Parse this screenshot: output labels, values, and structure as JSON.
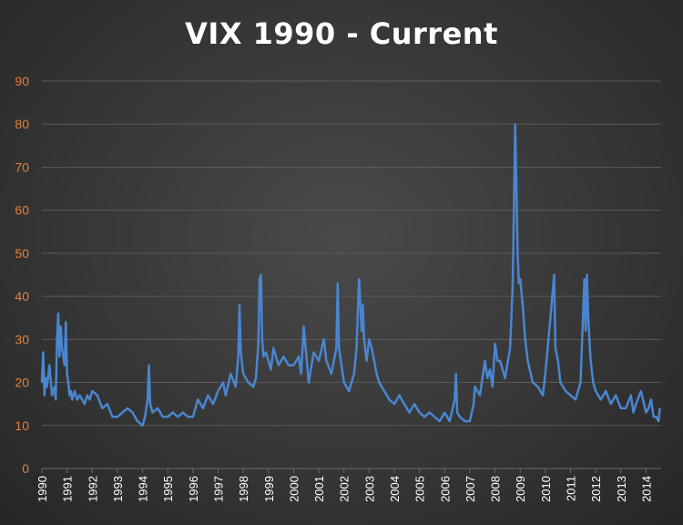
{
  "chart_data": {
    "type": "line",
    "title": "VIX 1990 - Current",
    "xlabel": "",
    "ylabel": "",
    "ylim": [
      0,
      90
    ],
    "yticks": [
      0,
      10,
      20,
      30,
      40,
      50,
      60,
      70,
      80,
      90
    ],
    "xlim": [
      1990.0,
      2014.6
    ],
    "xticks": [
      "1990",
      "1991",
      "1992",
      "1993",
      "1994",
      "1995",
      "1996",
      "1997",
      "1998",
      "1999",
      "2000",
      "2001",
      "2002",
      "2003",
      "2004",
      "2005",
      "2006",
      "2007",
      "2008",
      "2009",
      "2010",
      "2011",
      "2012",
      "2013",
      "2014"
    ],
    "grid": true,
    "legend": "none",
    "colors": {
      "line": "#4a86d0",
      "ytick": "#e2813a",
      "xtick": "#ffffff",
      "grid": "#5a5a5a"
    },
    "series": [
      {
        "x": [
          1990.0,
          1990.05,
          1990.1,
          1990.15,
          1990.2,
          1990.3,
          1990.4,
          1990.5,
          1990.55,
          1990.6,
          1990.65,
          1990.7,
          1990.75,
          1990.8,
          1990.85,
          1990.9,
          1990.95,
          1991.0,
          1991.05,
          1991.1,
          1991.15,
          1991.2,
          1991.3,
          1991.4,
          1991.5,
          1991.6,
          1991.7,
          1991.8,
          1991.9,
          1992.0,
          1992.2,
          1992.4,
          1992.6,
          1992.8,
          1993.0,
          1993.2,
          1993.4,
          1993.6,
          1993.8,
          1994.0,
          1994.1,
          1994.2,
          1994.25,
          1994.3,
          1994.4,
          1994.6,
          1994.8,
          1995.0,
          1995.2,
          1995.4,
          1995.6,
          1995.8,
          1996.0,
          1996.2,
          1996.4,
          1996.6,
          1996.8,
          1997.0,
          1997.2,
          1997.3,
          1997.5,
          1997.7,
          1997.8,
          1997.85,
          1997.9,
          1998.0,
          1998.2,
          1998.4,
          1998.5,
          1998.6,
          1998.65,
          1998.7,
          1998.75,
          1998.8,
          1998.9,
          1999.0,
          1999.1,
          1999.2,
          1999.4,
          1999.6,
          1999.8,
          2000.0,
          2000.2,
          2000.3,
          2000.4,
          2000.6,
          2000.8,
          2001.0,
          2001.2,
          2001.3,
          2001.5,
          2001.7,
          2001.75,
          2001.8,
          2001.9,
          2002.0,
          2002.2,
          2002.4,
          2002.5,
          2002.55,
          2002.6,
          2002.7,
          2002.75,
          2002.8,
          2002.9,
          2003.0,
          2003.1,
          2003.2,
          2003.3,
          2003.4,
          2003.6,
          2003.8,
          2004.0,
          2004.2,
          2004.4,
          2004.6,
          2004.8,
          2005.0,
          2005.2,
          2005.4,
          2005.6,
          2005.8,
          2006.0,
          2006.2,
          2006.4,
          2006.45,
          2006.5,
          2006.6,
          2006.8,
          2007.0,
          2007.15,
          2007.2,
          2007.4,
          2007.6,
          2007.7,
          2007.8,
          2007.9,
          2008.0,
          2008.1,
          2008.2,
          2008.4,
          2008.6,
          2008.7,
          2008.75,
          2008.8,
          2008.85,
          2008.9,
          2008.95,
          2009.0,
          2009.1,
          2009.2,
          2009.3,
          2009.5,
          2009.7,
          2009.9,
          2010.0,
          2010.2,
          2010.35,
          2010.4,
          2010.5,
          2010.6,
          2010.8,
          2011.0,
          2011.2,
          2011.4,
          2011.55,
          2011.6,
          2011.65,
          2011.7,
          2011.75,
          2011.8,
          2011.9,
          2012.0,
          2012.2,
          2012.4,
          2012.6,
          2012.8,
          2013.0,
          2013.2,
          2013.4,
          2013.5,
          2013.6,
          2013.8,
          2014.0,
          2014.1,
          2014.2,
          2014.3,
          2014.4,
          2014.5,
          2014.55
        ],
        "y": [
          20,
          27,
          17,
          21,
          19,
          24,
          17,
          19,
          16,
          30,
          36,
          26,
          33,
          28,
          26,
          24,
          34,
          22,
          20,
          17,
          18,
          16,
          18,
          16,
          17,
          16,
          15,
          17,
          16,
          18,
          17,
          14,
          15,
          12,
          12,
          13,
          14,
          13,
          11,
          10,
          12,
          16,
          24,
          15,
          13,
          14,
          12,
          12,
          13,
          12,
          13,
          12,
          12,
          16,
          14,
          17,
          15,
          18,
          20,
          17,
          22,
          19,
          26,
          38,
          27,
          22,
          20,
          19,
          21,
          29,
          44,
          45,
          30,
          26,
          27,
          25,
          23,
          28,
          24,
          26,
          24,
          24,
          26,
          22,
          33,
          20,
          27,
          25,
          30,
          25,
          22,
          28,
          43,
          28,
          24,
          20,
          18,
          22,
          28,
          36,
          44,
          32,
          38,
          30,
          25,
          30,
          28,
          25,
          22,
          20,
          18,
          16,
          15,
          17,
          15,
          13,
          15,
          13,
          12,
          13,
          12,
          11,
          13,
          11,
          16,
          22,
          13,
          12,
          11,
          11,
          15,
          19,
          17,
          25,
          21,
          23,
          19,
          29,
          25,
          25,
          21,
          28,
          42,
          60,
          80,
          65,
          50,
          43,
          44,
          38,
          30,
          25,
          20,
          19,
          17,
          22,
          35,
          45,
          28,
          25,
          20,
          18,
          17,
          16,
          20,
          44,
          32,
          45,
          36,
          30,
          25,
          20,
          18,
          16,
          18,
          15,
          17,
          14,
          14,
          17,
          13,
          15,
          18,
          13,
          14,
          16,
          12,
          12,
          11,
          14
        ]
      }
    ]
  }
}
